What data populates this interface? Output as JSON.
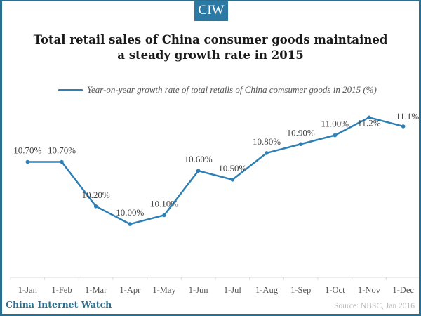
{
  "logo": {
    "text": "CIW"
  },
  "title_lines": [
    "Total retail sales of China consumer goods maintained",
    "a steady growth rate in 2015"
  ],
  "footer": {
    "brand": "China Internet Watch",
    "source": "Source: NBSC, Jan 2016"
  },
  "colors": {
    "series": "#2e7fb4",
    "brand": "#2a6f8f",
    "logo_bg": "#2c7aa3"
  },
  "chart_data": {
    "type": "line",
    "title": "Total retail sales of China consumer goods maintained a steady growth rate in 2015",
    "xlabel": "",
    "ylabel": "",
    "categories": [
      "1-Jan",
      "1-Feb",
      "1-Mar",
      "1-Apr",
      "1-May",
      "1-Jun",
      "1-Jul",
      "1-Aug",
      "1-Sep",
      "1-Oct",
      "1-Nov",
      "1-Dec"
    ],
    "series": [
      {
        "name": "Year-on-year growth rate of total retails of China comsumer goods in 2015 (%)",
        "values": [
          10.7,
          10.7,
          10.2,
          10.0,
          10.1,
          10.6,
          10.5,
          10.8,
          10.9,
          11.0,
          11.2,
          11.1
        ],
        "data_labels": [
          "10.70%",
          "10.70%",
          "10.20%",
          "10.00%",
          "10.10%",
          "10.60%",
          "10.50%",
          "10.80%",
          "10.90%",
          "11.00%",
          "11.2%",
          "11.1%"
        ]
      }
    ],
    "ylim": [
      9.4,
      11.4
    ],
    "y_axis_visible": false,
    "grid": false,
    "legend": "top"
  }
}
